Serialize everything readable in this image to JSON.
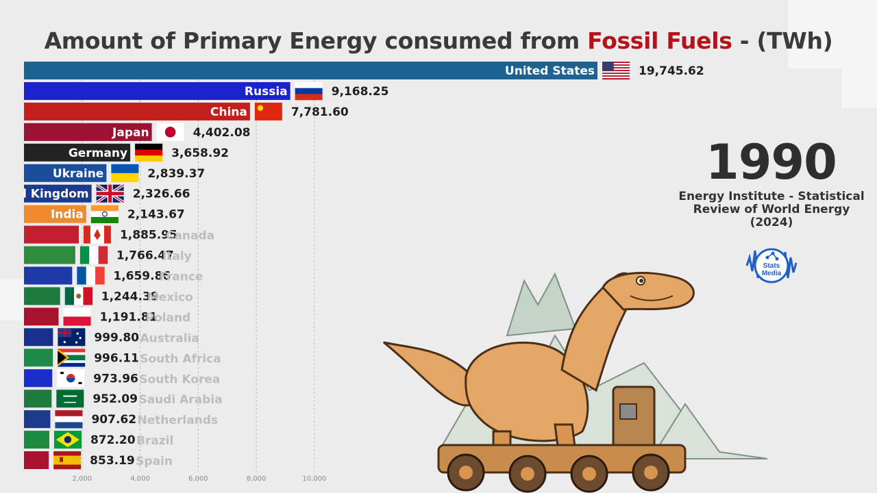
{
  "title": {
    "prefix": "Amount of Primary Energy consumed from ",
    "highlight": "Fossil Fuels",
    "suffix": " - (TWh)",
    "highlight_color": "#b5121b"
  },
  "year": "1990",
  "source": "Energy Institute - Statistical Review of World Energy (2024)",
  "logo": {
    "line1": "Stats",
    "line2": "Media"
  },
  "colors": {
    "background": "#ececec",
    "title": "#3a3a3a",
    "grid": "#bdbdbd"
  },
  "chart_data": {
    "type": "bar",
    "orientation": "horizontal",
    "unit": "TWh",
    "xlim": [
      0,
      19745.62
    ],
    "xticks": [
      2000,
      4000,
      6000,
      8000,
      10000
    ],
    "xtick_labels": [
      "2,000",
      "4,000",
      "6,000",
      "8,000",
      "10,000"
    ],
    "categories": [
      "United States",
      "Russia",
      "China",
      "Japan",
      "Germany",
      "Ukraine",
      "United Kingdom",
      "India",
      "Canada",
      "Italy",
      "France",
      "Mexico",
      "Poland",
      "Australia",
      "South Africa",
      "South Korea",
      "Saudi Arabia",
      "Netherlands",
      "Brazil",
      "Spain"
    ],
    "values": [
      19745.62,
      9168.25,
      7781.6,
      4402.08,
      3658.92,
      2839.37,
      2326.66,
      2143.67,
      1885.95,
      1766.47,
      1659.86,
      1244.39,
      1191.81,
      999.8,
      996.11,
      973.96,
      952.09,
      907.62,
      872.2,
      853.19
    ],
    "value_labels": [
      "19,745.62",
      "9,168.25",
      "7,781.60",
      "4,402.08",
      "3,658.92",
      "2,839.37",
      "2,326.66",
      "2,143.67",
      "1,885.95",
      "1,766.47",
      "1,659.86",
      "1,244.39",
      "1,191.81",
      "999.80",
      "996.11",
      "973.96",
      "952.09",
      "907.62",
      "872.20",
      "853.19"
    ],
    "bar_colors": [
      "#1c6391",
      "#1a22cc",
      "#c41f1f",
      "#9c1233",
      "#232323",
      "#1a4d9a",
      "#1a3a8c",
      "#ef8a2e",
      "#c41f2e",
      "#2e8b3e",
      "#1e3aa8",
      "#1e7a3e",
      "#a8122e",
      "#17308c",
      "#1e8a4a",
      "#1a2ecc",
      "#1e7a3e",
      "#1e3a8c",
      "#1e8a3e",
      "#a8122e"
    ],
    "flags": [
      "us-flag",
      "ru-flag",
      "cn-flag",
      "jp-flag",
      "de-flag",
      "ua-flag",
      "gb-flag",
      "in-flag",
      "ca-flag",
      "it-flag",
      "fr-flag",
      "mx-flag",
      "pl-flag",
      "au-flag",
      "za-flag",
      "kr-flag",
      "sa-flag",
      "nl-flag",
      "br-flag",
      "es-flag"
    ]
  }
}
